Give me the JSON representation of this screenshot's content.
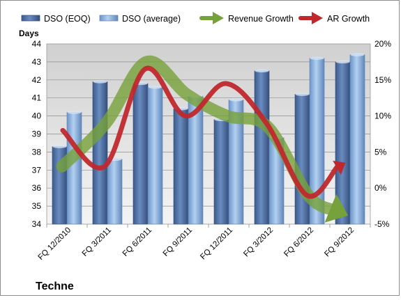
{
  "chart_data": {
    "type": "bar",
    "title": "Techne",
    "ylabel": "Days",
    "categories": [
      "FQ 12/2010",
      "FQ 3/2011",
      "FQ 6/2011",
      "FQ 9/2011",
      "FQ 12/2011",
      "FQ 3/2012",
      "FQ 6/2012",
      "FQ 9/2012"
    ],
    "ylim": [
      34,
      44
    ],
    "yticks": [
      "34",
      "35",
      "36",
      "37",
      "38",
      "39",
      "40",
      "41",
      "42",
      "43",
      "44"
    ],
    "y2lim": [
      -5,
      20
    ],
    "y2ticks": [
      "-5%",
      "0%",
      "5%",
      "10%",
      "15%",
      "20%"
    ],
    "grid": true,
    "legend_position": "top",
    "series": [
      {
        "name": "DSO (EOQ)",
        "type": "bar",
        "axis": "left",
        "color": "#4a6aa0",
        "values": [
          38.3,
          41.9,
          41.8,
          40.4,
          39.8,
          42.5,
          41.2,
          43.0
        ]
      },
      {
        "name": "DSO (average)",
        "type": "bar",
        "axis": "left",
        "color": "#8fb4e0",
        "values": [
          40.2,
          37.6,
          41.6,
          41.1,
          40.9,
          38.8,
          43.2,
          43.4
        ]
      },
      {
        "name": "Revenue Growth",
        "type": "arrow",
        "axis": "right",
        "color": "#77a13a",
        "values": [
          3.0,
          9.0,
          17.5,
          13.0,
          10.0,
          8.5,
          -1.0,
          -3.5
        ]
      },
      {
        "name": "AR Growth",
        "type": "arrow",
        "axis": "right",
        "color": "#c0282d",
        "values": [
          8.0,
          3.0,
          16.5,
          10.0,
          14.5,
          9.0,
          -1.0,
          3.0
        ]
      }
    ]
  }
}
